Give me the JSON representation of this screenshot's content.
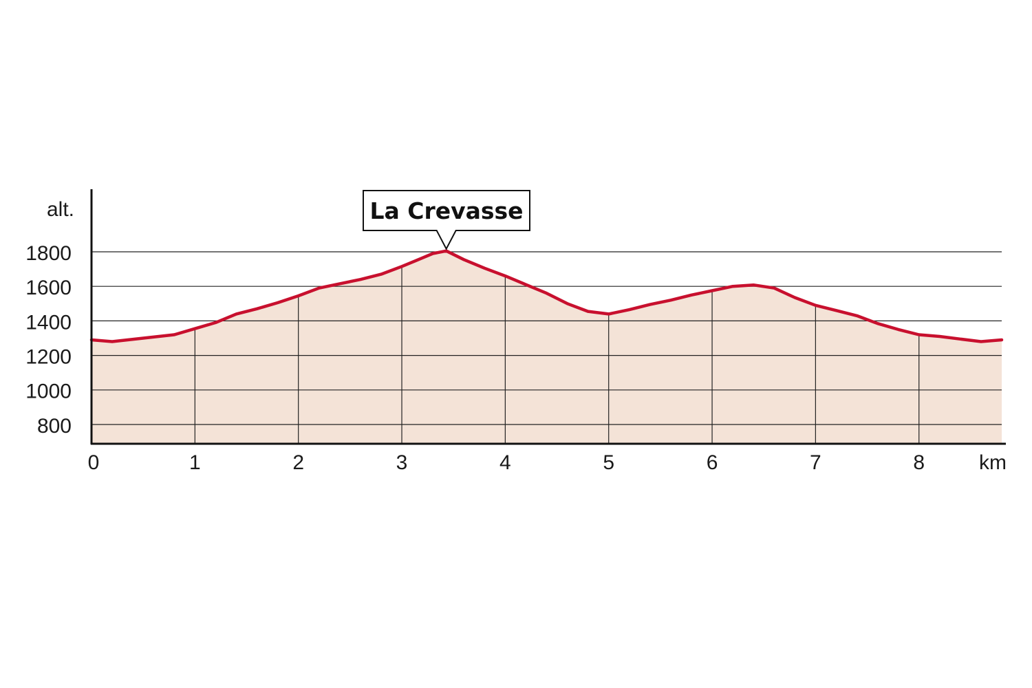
{
  "chart_data": {
    "type": "area",
    "ylabel": "alt.",
    "xlabel": "km",
    "xlim": [
      0,
      8.8
    ],
    "ylim": [
      700,
      1880
    ],
    "x_ticks": [
      0,
      1,
      2,
      3,
      4,
      5,
      6,
      7,
      8
    ],
    "y_ticks": [
      800,
      1000,
      1200,
      1400,
      1600,
      1800
    ],
    "grid": "horizontal lines at y ticks; vertical lines at x ticks below the profile",
    "series": [
      {
        "x": [
          0,
          0.2,
          0.5,
          0.8,
          1.0,
          1.2,
          1.4,
          1.6,
          1.8,
          2.0,
          2.2,
          2.4,
          2.6,
          2.8,
          3.0,
          3.1,
          3.2,
          3.3,
          3.43,
          3.6,
          3.8,
          4.0,
          4.2,
          4.4,
          4.6,
          4.8,
          5.0,
          5.2,
          5.4,
          5.6,
          5.8,
          6.0,
          6.2,
          6.4,
          6.6,
          6.8,
          7.0,
          7.2,
          7.4,
          7.6,
          7.8,
          8.0,
          8.2,
          8.4,
          8.6,
          8.8
        ],
        "y": [
          1290,
          1280,
          1300,
          1320,
          1355,
          1390,
          1440,
          1470,
          1505,
          1545,
          1590,
          1615,
          1640,
          1670,
          1715,
          1740,
          1765,
          1790,
          1805,
          1755,
          1705,
          1660,
          1610,
          1560,
          1500,
          1455,
          1440,
          1465,
          1495,
          1520,
          1550,
          1575,
          1600,
          1608,
          1590,
          1535,
          1490,
          1460,
          1430,
          1385,
          1350,
          1320,
          1310,
          1295,
          1280,
          1290
        ]
      }
    ],
    "annotation": {
      "text": "La Crevasse",
      "x": 3.43,
      "y": 1805
    },
    "colors": {
      "line": "#c8102e",
      "fill": "#f4e3d7",
      "grid": "#222222",
      "axis": "#111111"
    }
  }
}
